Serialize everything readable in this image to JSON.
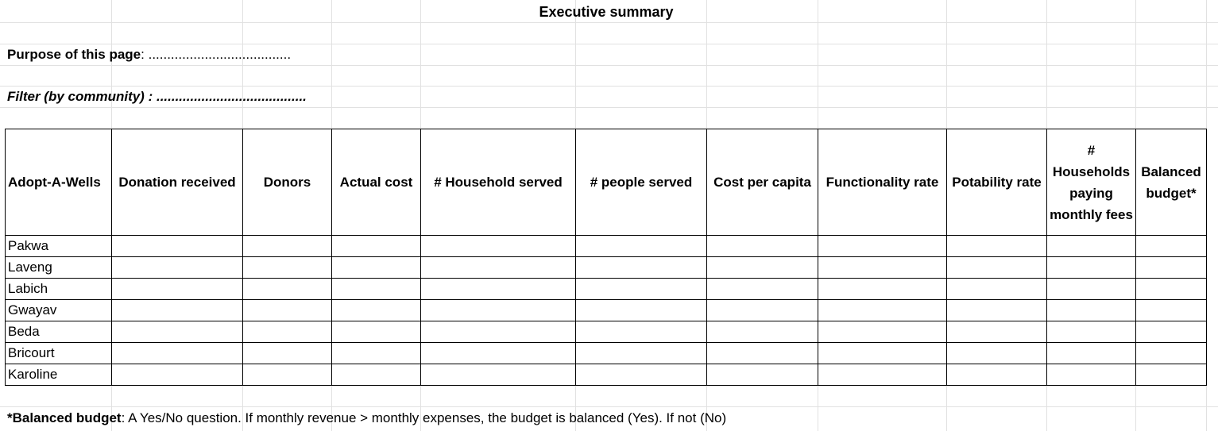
{
  "sheet": {
    "title": "Executive summary",
    "purpose": {
      "label": "Purpose of this page",
      "separator": ": ",
      "blank": "......................................"
    },
    "filter": {
      "label": "Filter (by community) : ",
      "blank": "........................................"
    }
  },
  "table": {
    "headers": [
      "Adopt-A-Wells",
      "Donation received",
      "Donors",
      "Actual cost",
      "# Household served",
      "# people served",
      "Cost per capita",
      "Functionality rate",
      "Potability rate",
      "# Households paying monthly fees",
      "Balanced budget*"
    ],
    "rows": [
      "Pakwa",
      "Laveng",
      "Labich",
      "Gwayav",
      "Beda",
      "Bricourt",
      "Karoline"
    ]
  },
  "footnote": {
    "label": "*Balanced budget",
    "text": ": A Yes/No question. If monthly revenue > monthly expenses, the budget is balanced (Yes). If not (No)"
  }
}
